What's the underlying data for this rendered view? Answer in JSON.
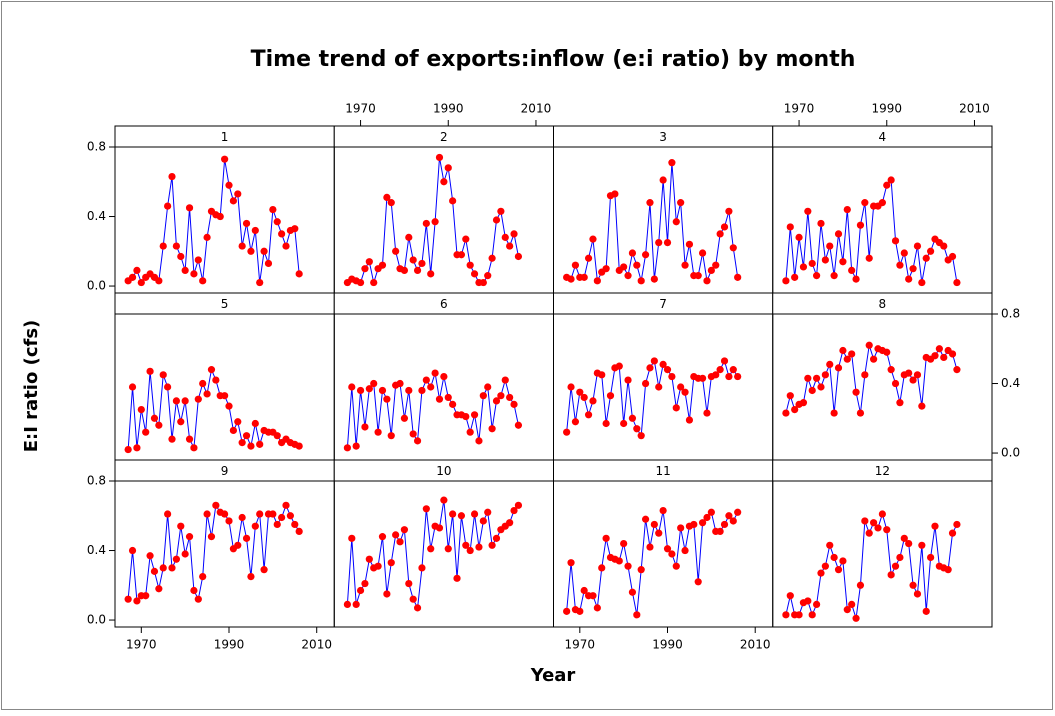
{
  "title": "Time trend of exports:inflow (e:i ratio) by month",
  "x_label": "Year",
  "y_label": "E:I ratio (cfs)",
  "xlim": [
    1964,
    2014
  ],
  "xticks": [
    1970,
    1990,
    2010
  ],
  "ylim": [
    -0.04,
    0.8
  ],
  "yticks": [
    {
      "value": 0,
      "label": "0.0"
    },
    {
      "value": 0.4,
      "label": "0.4"
    },
    {
      "value": 0.8,
      "label": "0.8"
    }
  ],
  "line_color": "#0000ff",
  "marker_color": "#ff0000",
  "chart_data": [
    {
      "type": "line",
      "title": "1",
      "x": [
        1967,
        1968,
        1969,
        1970,
        1971,
        1972,
        1973,
        1974,
        1975,
        1976,
        1977,
        1978,
        1979,
        1980,
        1981,
        1982,
        1983,
        1984,
        1985,
        1986,
        1987,
        1988,
        1989,
        1990,
        1991,
        1992,
        1993,
        1994,
        1995,
        1996,
        1997,
        1998,
        1999,
        2000,
        2001,
        2002,
        2003,
        2004,
        2005,
        2006
      ],
      "values": [
        0.03,
        0.05,
        0.09,
        0.02,
        0.05,
        0.07,
        0.05,
        0.03,
        0.23,
        0.46,
        0.63,
        0.23,
        0.17,
        0.09,
        0.45,
        0.07,
        0.15,
        0.03,
        0.28,
        0.43,
        0.41,
        0.4,
        0.73,
        0.58,
        0.49,
        0.53,
        0.23,
        0.36,
        0.2,
        0.32,
        0.02,
        0.2,
        0.13,
        0.44,
        0.37,
        0.3,
        0.23,
        0.32,
        0.33,
        0.07
      ]
    },
    {
      "type": "line",
      "title": "2",
      "x": [
        1967,
        1968,
        1969,
        1970,
        1971,
        1972,
        1973,
        1974,
        1975,
        1976,
        1977,
        1978,
        1979,
        1980,
        1981,
        1982,
        1983,
        1984,
        1985,
        1986,
        1987,
        1988,
        1989,
        1990,
        1991,
        1992,
        1993,
        1994,
        1995,
        1996,
        1997,
        1998,
        1999,
        2000,
        2001,
        2002,
        2003,
        2004,
        2005,
        2006
      ],
      "values": [
        0.02,
        0.04,
        0.03,
        0.02,
        0.1,
        0.14,
        0.02,
        0.1,
        0.12,
        0.51,
        0.48,
        0.2,
        0.1,
        0.09,
        0.28,
        0.15,
        0.09,
        0.13,
        0.36,
        0.07,
        0.37,
        0.74,
        0.6,
        0.68,
        0.49,
        0.18,
        0.18,
        0.27,
        0.12,
        0.07,
        0.02,
        0.02,
        0.06,
        0.16,
        0.38,
        0.43,
        0.28,
        0.23,
        0.3,
        0.17
      ]
    },
    {
      "type": "line",
      "title": "3",
      "x": [
        1967,
        1968,
        1969,
        1970,
        1971,
        1972,
        1973,
        1974,
        1975,
        1976,
        1977,
        1978,
        1979,
        1980,
        1981,
        1982,
        1983,
        1984,
        1985,
        1986,
        1987,
        1988,
        1989,
        1990,
        1991,
        1992,
        1993,
        1994,
        1995,
        1996,
        1997,
        1998,
        1999,
        2000,
        2001,
        2002,
        2003,
        2004,
        2005,
        2006
      ],
      "values": [
        0.05,
        0.04,
        0.12,
        0.05,
        0.05,
        0.16,
        0.27,
        0.03,
        0.08,
        0.1,
        0.52,
        0.53,
        0.09,
        0.11,
        0.06,
        0.19,
        0.12,
        0.03,
        0.18,
        0.48,
        0.04,
        0.25,
        0.61,
        0.25,
        0.71,
        0.37,
        0.48,
        0.12,
        0.24,
        0.06,
        0.06,
        0.19,
        0.03,
        0.09,
        0.12,
        0.3,
        0.34,
        0.43,
        0.22,
        0.05
      ]
    },
    {
      "type": "line",
      "title": "4",
      "x": [
        1967,
        1968,
        1969,
        1970,
        1971,
        1972,
        1973,
        1974,
        1975,
        1976,
        1977,
        1978,
        1979,
        1980,
        1981,
        1982,
        1983,
        1984,
        1985,
        1986,
        1987,
        1988,
        1989,
        1990,
        1991,
        1992,
        1993,
        1994,
        1995,
        1996,
        1997,
        1998,
        1999,
        2000,
        2001,
        2002,
        2003,
        2004,
        2005,
        2006
      ],
      "values": [
        0.03,
        0.34,
        0.05,
        0.28,
        0.11,
        0.43,
        0.13,
        0.06,
        0.36,
        0.15,
        0.23,
        0.06,
        0.3,
        0.14,
        0.44,
        0.09,
        0.04,
        0.35,
        0.48,
        0.16,
        0.46,
        0.46,
        0.48,
        0.58,
        0.61,
        0.26,
        0.12,
        0.19,
        0.04,
        0.1,
        0.23,
        0.02,
        0.16,
        0.2,
        0.27,
        0.25,
        0.23,
        0.15,
        0.17,
        0.02
      ]
    },
    {
      "type": "line",
      "title": "5",
      "x": [
        1967,
        1968,
        1969,
        1970,
        1971,
        1972,
        1973,
        1974,
        1975,
        1976,
        1977,
        1978,
        1979,
        1980,
        1981,
        1982,
        1983,
        1984,
        1985,
        1986,
        1987,
        1988,
        1989,
        1990,
        1991,
        1992,
        1993,
        1994,
        1995,
        1996,
        1997,
        1998,
        1999,
        2000,
        2001,
        2002,
        2003,
        2004,
        2005,
        2006
      ],
      "values": [
        0.02,
        0.38,
        0.03,
        0.25,
        0.12,
        0.47,
        0.2,
        0.16,
        0.45,
        0.38,
        0.08,
        0.3,
        0.18,
        0.3,
        0.08,
        0.03,
        0.31,
        0.4,
        0.34,
        0.48,
        0.42,
        0.33,
        0.33,
        0.27,
        0.13,
        0.18,
        0.06,
        0.1,
        0.04,
        0.17,
        0.05,
        0.13,
        0.12,
        0.12,
        0.1,
        0.06,
        0.08,
        0.06,
        0.05,
        0.04
      ]
    },
    {
      "type": "line",
      "title": "6",
      "x": [
        1967,
        1968,
        1969,
        1970,
        1971,
        1972,
        1973,
        1974,
        1975,
        1976,
        1977,
        1978,
        1979,
        1980,
        1981,
        1982,
        1983,
        1984,
        1985,
        1986,
        1987,
        1988,
        1989,
        1990,
        1991,
        1992,
        1993,
        1994,
        1995,
        1996,
        1997,
        1998,
        1999,
        2000,
        2001,
        2002,
        2003,
        2004,
        2005,
        2006
      ],
      "values": [
        0.03,
        0.38,
        0.04,
        0.36,
        0.15,
        0.37,
        0.4,
        0.12,
        0.36,
        0.31,
        0.1,
        0.39,
        0.4,
        0.2,
        0.36,
        0.11,
        0.07,
        0.36,
        0.42,
        0.38,
        0.46,
        0.31,
        0.44,
        0.32,
        0.28,
        0.22,
        0.22,
        0.21,
        0.12,
        0.22,
        0.07,
        0.33,
        0.38,
        0.14,
        0.3,
        0.33,
        0.42,
        0.32,
        0.28,
        0.16
      ]
    },
    {
      "type": "line",
      "title": "7",
      "x": [
        1967,
        1968,
        1969,
        1970,
        1971,
        1972,
        1973,
        1974,
        1975,
        1976,
        1977,
        1978,
        1979,
        1980,
        1981,
        1982,
        1983,
        1984,
        1985,
        1986,
        1987,
        1988,
        1989,
        1990,
        1991,
        1992,
        1993,
        1994,
        1995,
        1996,
        1997,
        1998,
        1999,
        2000,
        2001,
        2002,
        2003,
        2004,
        2005,
        2006
      ],
      "values": [
        0.12,
        0.38,
        0.18,
        0.35,
        0.32,
        0.22,
        0.3,
        0.46,
        0.45,
        0.17,
        0.33,
        0.49,
        0.5,
        0.17,
        0.42,
        0.2,
        0.14,
        0.1,
        0.4,
        0.49,
        0.53,
        0.38,
        0.51,
        0.48,
        0.44,
        0.26,
        0.38,
        0.35,
        0.19,
        0.44,
        0.43,
        0.43,
        0.23,
        0.44,
        0.45,
        0.48,
        0.53,
        0.44,
        0.48,
        0.44
      ]
    },
    {
      "type": "line",
      "title": "8",
      "x": [
        1967,
        1968,
        1969,
        1970,
        1971,
        1972,
        1973,
        1974,
        1975,
        1976,
        1977,
        1978,
        1979,
        1980,
        1981,
        1982,
        1983,
        1984,
        1985,
        1986,
        1987,
        1988,
        1989,
        1990,
        1991,
        1992,
        1993,
        1994,
        1995,
        1996,
        1997,
        1998,
        1999,
        2000,
        2001,
        2002,
        2003,
        2004,
        2005,
        2006
      ],
      "values": [
        0.23,
        0.33,
        0.25,
        0.28,
        0.29,
        0.43,
        0.36,
        0.43,
        0.38,
        0.45,
        0.51,
        0.23,
        0.49,
        0.59,
        0.54,
        0.57,
        0.35,
        0.23,
        0.45,
        0.62,
        0.54,
        0.6,
        0.59,
        0.58,
        0.48,
        0.4,
        0.29,
        0.45,
        0.46,
        0.42,
        0.45,
        0.27,
        0.55,
        0.54,
        0.56,
        0.6,
        0.55,
        0.59,
        0.57,
        0.48
      ]
    },
    {
      "type": "line",
      "title": "9",
      "x": [
        1967,
        1968,
        1969,
        1970,
        1971,
        1972,
        1973,
        1974,
        1975,
        1976,
        1977,
        1978,
        1979,
        1980,
        1981,
        1982,
        1983,
        1984,
        1985,
        1986,
        1987,
        1988,
        1989,
        1990,
        1991,
        1992,
        1993,
        1994,
        1995,
        1996,
        1997,
        1998,
        1999,
        2000,
        2001,
        2002,
        2003,
        2004,
        2005,
        2006
      ],
      "values": [
        0.12,
        0.4,
        0.11,
        0.14,
        0.14,
        0.37,
        0.28,
        0.18,
        0.3,
        0.61,
        0.3,
        0.35,
        0.54,
        0.38,
        0.48,
        0.17,
        0.12,
        0.25,
        0.61,
        0.48,
        0.66,
        0.62,
        0.61,
        0.57,
        0.41,
        0.43,
        0.59,
        0.47,
        0.25,
        0.54,
        0.61,
        0.29,
        0.61,
        0.61,
        0.55,
        0.59,
        0.66,
        0.6,
        0.55,
        0.51
      ]
    },
    {
      "type": "line",
      "title": "10",
      "x": [
        1967,
        1968,
        1969,
        1970,
        1971,
        1972,
        1973,
        1974,
        1975,
        1976,
        1977,
        1978,
        1979,
        1980,
        1981,
        1982,
        1983,
        1984,
        1985,
        1986,
        1987,
        1988,
        1989,
        1990,
        1991,
        1992,
        1993,
        1994,
        1995,
        1996,
        1997,
        1998,
        1999,
        2000,
        2001,
        2002,
        2003,
        2004,
        2005,
        2006
      ],
      "values": [
        0.09,
        0.47,
        0.09,
        0.17,
        0.21,
        0.35,
        0.3,
        0.31,
        0.48,
        0.15,
        0.33,
        0.49,
        0.45,
        0.52,
        0.21,
        0.12,
        0.07,
        0.3,
        0.64,
        0.41,
        0.54,
        0.53,
        0.69,
        0.41,
        0.61,
        0.24,
        0.6,
        0.43,
        0.4,
        0.61,
        0.42,
        0.57,
        0.62,
        0.43,
        0.47,
        0.52,
        0.54,
        0.56,
        0.63,
        0.66
      ]
    },
    {
      "type": "line",
      "title": "11",
      "x": [
        1967,
        1968,
        1969,
        1970,
        1971,
        1972,
        1973,
        1974,
        1975,
        1976,
        1977,
        1978,
        1979,
        1980,
        1981,
        1982,
        1983,
        1984,
        1985,
        1986,
        1987,
        1988,
        1989,
        1990,
        1991,
        1992,
        1993,
        1994,
        1995,
        1996,
        1997,
        1998,
        1999,
        2000,
        2001,
        2002,
        2003,
        2004,
        2005,
        2006
      ],
      "values": [
        0.05,
        0.33,
        0.06,
        0.05,
        0.17,
        0.14,
        0.14,
        0.07,
        0.3,
        0.47,
        0.36,
        0.35,
        0.34,
        0.44,
        0.31,
        0.16,
        0.03,
        0.29,
        0.58,
        0.42,
        0.55,
        0.5,
        0.63,
        0.41,
        0.38,
        0.31,
        0.53,
        0.4,
        0.54,
        0.55,
        0.22,
        0.56,
        0.59,
        0.62,
        0.51,
        0.51,
        0.55,
        0.6,
        0.57,
        0.62
      ]
    },
    {
      "type": "line",
      "title": "12",
      "x": [
        1967,
        1968,
        1969,
        1970,
        1971,
        1972,
        1973,
        1974,
        1975,
        1976,
        1977,
        1978,
        1979,
        1980,
        1981,
        1982,
        1983,
        1984,
        1985,
        1986,
        1987,
        1988,
        1989,
        1990,
        1991,
        1992,
        1993,
        1994,
        1995,
        1996,
        1997,
        1998,
        1999,
        2000,
        2001,
        2002,
        2003,
        2004,
        2005,
        2006
      ],
      "values": [
        0.03,
        0.14,
        0.03,
        0.03,
        0.1,
        0.11,
        0.03,
        0.09,
        0.27,
        0.31,
        0.43,
        0.36,
        0.29,
        0.34,
        0.06,
        0.09,
        0.01,
        0.2,
        0.57,
        0.5,
        0.56,
        0.53,
        0.61,
        0.52,
        0.26,
        0.31,
        0.36,
        0.47,
        0.44,
        0.2,
        0.15,
        0.43,
        0.05,
        0.36,
        0.54,
        0.31,
        0.3,
        0.29,
        0.5,
        0.55
      ]
    }
  ]
}
